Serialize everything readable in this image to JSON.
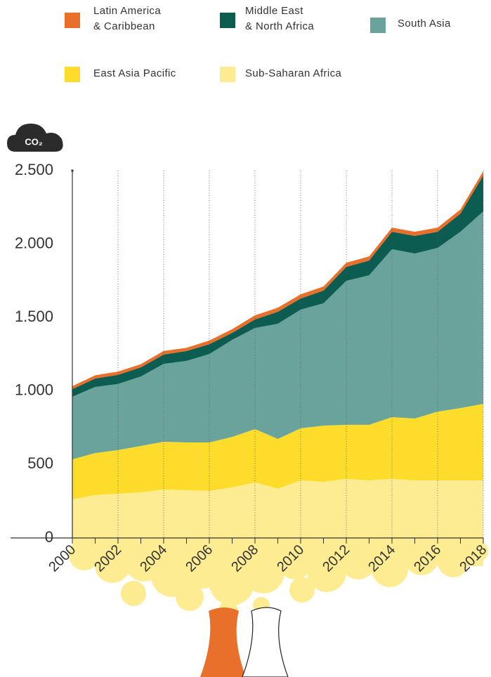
{
  "chart_data": {
    "type": "stacked_area",
    "icon_label": "CO₂",
    "categories": [
      "2000",
      null,
      "2002",
      null,
      "2004",
      null,
      "2006",
      null,
      "2008",
      null,
      "2010",
      null,
      "2012",
      null,
      "2014",
      null,
      "2016",
      null,
      "2018"
    ],
    "series": [
      {
        "name": "Sub-Saharan Africa",
        "color": "#fdec91",
        "values": [
          263,
          292,
          301,
          311,
          330,
          325,
          320,
          344,
          378,
          335,
          392,
          382,
          402,
          392,
          402,
          392,
          392,
          392,
          392
        ]
      },
      {
        "name": "East Asia Pacific",
        "color": "#fddc2c",
        "values": [
          272,
          286,
          297,
          315,
          325,
          325,
          330,
          344,
          363,
          339,
          354,
          383,
          368,
          378,
          420,
          421,
          468,
          492,
          521
        ]
      },
      {
        "name": "South Asia",
        "color": "#6aa39b",
        "values": [
          426,
          450,
          450,
          473,
          530,
          555,
          602,
          660,
          688,
          784,
          808,
          832,
          980,
          1018,
          1143,
          1123,
          1114,
          1200,
          1310
        ]
      },
      {
        "name": "Middle East\n& North Africa",
        "color": "#0c5c52",
        "values": [
          52,
          57,
          62,
          62,
          63,
          67,
          67,
          48,
          58,
          81,
          76,
          86,
          95,
          100,
          119,
          120,
          110,
          124,
          244
        ]
      },
      {
        "name": "Latin America\n& Caribbean",
        "color": "#e8702a",
        "values": [
          20,
          22,
          22,
          22,
          25,
          22,
          25,
          25,
          28,
          28,
          28,
          28,
          28,
          28,
          28,
          28,
          28,
          28,
          30
        ]
      }
    ],
    "ylim": [
      0,
      2500
    ],
    "yticks": [
      0,
      500,
      {
        "value": 1000,
        "label": "1.000"
      },
      {
        "value": 1500,
        "label": "1.500"
      },
      {
        "value": 2000,
        "label": "2.000"
      },
      {
        "value": 2500,
        "label": "2.500"
      }
    ],
    "grid": true
  }
}
